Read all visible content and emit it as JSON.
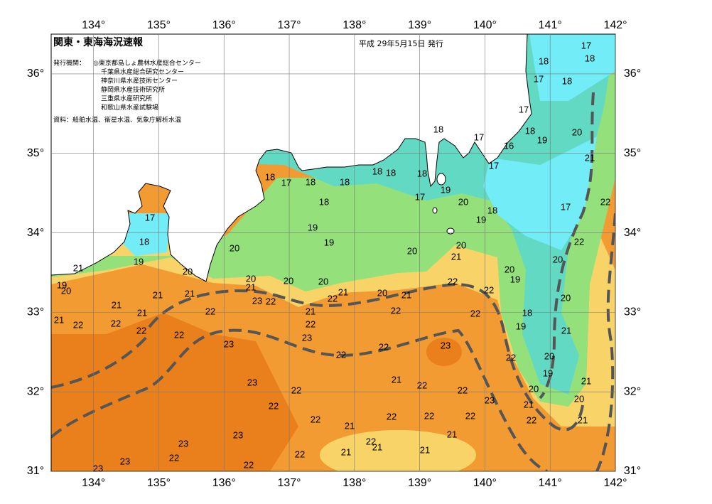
{
  "header": {
    "title": "関東・東海海況速報",
    "issue_date": "平成 29年5月15日 発行",
    "publisher_label": "発行機関：",
    "publishers": [
      "◎東京都島しょ農林水産総合センター",
      "千葉県水産総合研究センター",
      "神奈川県水産技術センター",
      "静岡県水産技術研究所",
      "三重県水産研究所",
      "和歌山県水産試験場"
    ],
    "sources": "資料：船舶水温、衛星水温、気象庁解析水温"
  },
  "map": {
    "lon_range": [
      133.35,
      142
    ],
    "lat_range": [
      31,
      36.5
    ],
    "lon_ticks": [
      {
        "value": 134,
        "label": "134°"
      },
      {
        "value": 135,
        "label": "135°"
      },
      {
        "value": 136,
        "label": "136°"
      },
      {
        "value": 137,
        "label": "137°"
      },
      {
        "value": 138,
        "label": "138°"
      },
      {
        "value": 139,
        "label": "139°"
      },
      {
        "value": 140,
        "label": "140°"
      },
      {
        "value": 141,
        "label": "141°"
      },
      {
        "value": 142,
        "label": "142°"
      }
    ],
    "lat_ticks": [
      {
        "value": 31,
        "label": "31°"
      },
      {
        "value": 32,
        "label": "32°"
      },
      {
        "value": 33,
        "label": "33°"
      },
      {
        "value": 34,
        "label": "34°"
      },
      {
        "value": 35,
        "label": "35°"
      },
      {
        "value": 36,
        "label": "36°"
      }
    ],
    "temperature_labels": [
      17,
      18,
      18,
      17,
      18,
      17,
      18,
      19,
      20,
      21,
      16,
      17,
      17,
      18,
      18,
      17,
      18,
      18,
      18,
      18,
      18,
      17,
      19,
      18,
      20,
      18,
      19,
      17,
      22,
      17,
      18,
      19,
      19,
      20,
      20,
      20,
      21,
      22,
      19,
      20,
      21,
      20,
      20,
      21,
      20,
      20,
      20,
      19,
      19,
      20,
      21,
      20,
      21,
      22,
      22,
      23,
      22,
      21,
      21,
      21,
      21,
      21,
      22,
      22,
      22,
      20,
      18,
      19,
      21,
      22,
      22,
      22,
      22,
      22,
      23,
      22,
      21,
      23,
      22,
      22,
      23,
      22,
      20,
      19,
      21,
      23,
      21,
      22,
      22,
      22,
      20,
      20,
      22,
      23,
      21,
      22,
      22,
      22,
      22,
      22,
      21,
      21,
      23,
      21,
      22,
      23,
      21,
      21,
      21,
      22,
      22,
      23,
      22,
      23
    ]
  }
}
